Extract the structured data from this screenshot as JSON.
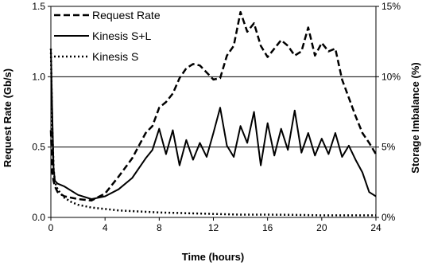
{
  "chart_data": {
    "type": "line",
    "title": "",
    "xlabel": "Time (hours)",
    "ylabel_left": "Request Rate (Gb/s)",
    "ylabel_right": "Storage Imbalance (%)",
    "xlim": [
      0,
      24
    ],
    "ylim_left": [
      0,
      1.5
    ],
    "ylim_right": [
      0,
      15
    ],
    "xticks": [
      "0",
      "4",
      "8",
      "12",
      "16",
      "20",
      "24"
    ],
    "yticks_left": [
      "0.0",
      "0.5",
      "1.0",
      "1.5"
    ],
    "yticks_right": [
      "0%",
      "5%",
      "10%",
      "15%"
    ],
    "grid": "horizontal at 0.5 and 1.0",
    "legend_position": "top-left",
    "series": [
      {
        "name": "Request Rate",
        "axis": "left",
        "style": "dashed",
        "x": [
          0,
          0.1,
          0.2,
          0.3,
          0.5,
          1,
          2,
          3,
          4,
          5,
          6,
          7,
          7.5,
          8,
          8.5,
          9,
          9.5,
          10,
          10.5,
          11,
          11.5,
          12,
          12.5,
          13,
          13.5,
          14,
          14.5,
          15,
          15.5,
          16,
          16.5,
          17,
          17.5,
          18,
          18.5,
          19,
          19.5,
          20,
          20.5,
          21,
          21.5,
          22,
          22.5,
          23,
          23.5,
          24
        ],
        "y": [
          0.62,
          0.32,
          0.26,
          0.22,
          0.18,
          0.15,
          0.13,
          0.12,
          0.17,
          0.29,
          0.42,
          0.6,
          0.65,
          0.78,
          0.82,
          0.88,
          0.99,
          1.06,
          1.09,
          1.08,
          1.03,
          0.98,
          0.99,
          1.15,
          1.22,
          1.46,
          1.32,
          1.38,
          1.22,
          1.14,
          1.2,
          1.26,
          1.22,
          1.15,
          1.18,
          1.35,
          1.15,
          1.24,
          1.18,
          1.2,
          0.98,
          0.85,
          0.72,
          0.6,
          0.53,
          0.45
        ]
      },
      {
        "name": "Kinesis S+L",
        "axis": "right",
        "style": "solid",
        "x": [
          0,
          0.1,
          0.2,
          0.3,
          0.5,
          1,
          2,
          3,
          4,
          5,
          6,
          7,
          7.5,
          8,
          8.5,
          9,
          9.5,
          10,
          10.5,
          11,
          11.5,
          12,
          12.5,
          13,
          13.5,
          14,
          14.5,
          15,
          15.5,
          16,
          16.5,
          17,
          17.5,
          18,
          18.5,
          19,
          19.5,
          20,
          20.5,
          21,
          21.5,
          22,
          22.5,
          23,
          23.5,
          24
        ],
        "y": [
          12.0,
          7.5,
          3.5,
          2.6,
          2.4,
          2.2,
          1.6,
          1.3,
          1.5,
          2.0,
          2.8,
          4.2,
          4.8,
          6.3,
          4.5,
          6.2,
          3.7,
          5.5,
          4.1,
          5.3,
          4.3,
          6.0,
          7.8,
          5.1,
          4.3,
          6.5,
          5.3,
          7.5,
          3.7,
          6.7,
          4.4,
          6.3,
          4.8,
          7.6,
          4.6,
          6.0,
          4.4,
          5.6,
          4.5,
          6.0,
          4.3,
          5.1,
          4.1,
          3.2,
          1.8,
          1.5
        ]
      },
      {
        "name": "Kinesis S",
        "axis": "right",
        "style": "dotted",
        "x": [
          0,
          0.1,
          0.2,
          0.3,
          0.5,
          0.8,
          1,
          1.5,
          2,
          3,
          4,
          5,
          6,
          8,
          10,
          12,
          14,
          16,
          18,
          20,
          22,
          24
        ],
        "y": [
          12.0,
          6.5,
          3.5,
          2.5,
          2.0,
          1.6,
          1.4,
          1.1,
          0.9,
          0.7,
          0.6,
          0.5,
          0.45,
          0.35,
          0.3,
          0.25,
          0.2,
          0.2,
          0.18,
          0.15,
          0.15,
          0.15
        ]
      }
    ]
  }
}
